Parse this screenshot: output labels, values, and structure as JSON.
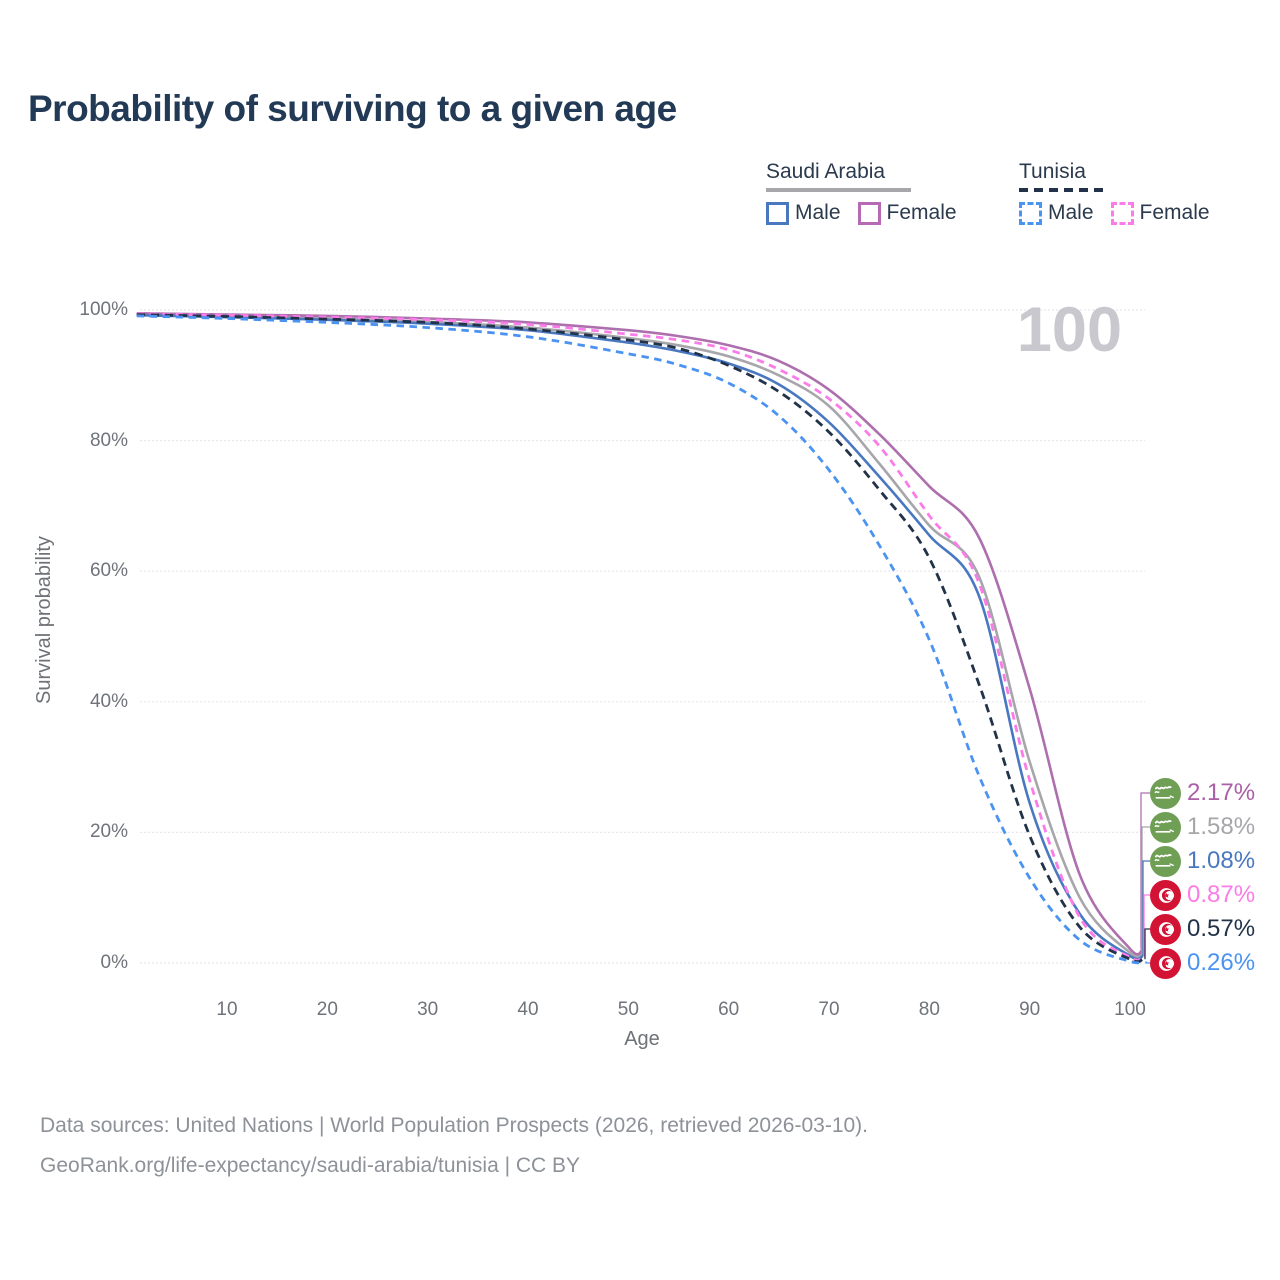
{
  "title": "Probability of surviving to a given age",
  "watermark": "100",
  "legend": {
    "groups": [
      {
        "name": "Saudi Arabia",
        "line_style": "solid",
        "underline_color": "#a6a6ab",
        "items": [
          {
            "label": "Male",
            "color": "#4978c0"
          },
          {
            "label": "Female",
            "color": "#b66ab4"
          }
        ]
      },
      {
        "name": "Tunisia",
        "line_style": "dashed",
        "underline_color": "#223349",
        "items": [
          {
            "label": "Male",
            "color": "#4b93f1"
          },
          {
            "label": "Female",
            "color": "#fb7ce8"
          }
        ]
      }
    ]
  },
  "chart_data": {
    "type": "line",
    "title": "Probability of surviving to a given age",
    "xlabel": "Age",
    "ylabel": "Survival probability",
    "xlim": [
      1,
      101.5
    ],
    "ylim": [
      0,
      100
    ],
    "x_ticks": [
      10,
      20,
      30,
      40,
      50,
      60,
      70,
      80,
      90,
      100
    ],
    "y_ticks": [
      0,
      20,
      40,
      60,
      80,
      100
    ],
    "y_tick_suffix": "%",
    "grid": "horizontal",
    "legend_position": "top-right",
    "ages": [
      1,
      10,
      20,
      30,
      40,
      50,
      55,
      60,
      65,
      70,
      75,
      80,
      85,
      90,
      95,
      100
    ],
    "series": [
      {
        "name": "Saudi Arabia Total",
        "color": "#a6a6ab",
        "dashed": false,
        "values": [
          99.3,
          99.1,
          98.7,
          98.2,
          97.3,
          95.7,
          94.6,
          92.9,
          90.0,
          85.3,
          76.5,
          67.0,
          59.0,
          30.8,
          10.0,
          1.58
        ],
        "end_label": "1.58%"
      },
      {
        "name": "Saudi Arabia Female",
        "color": "#ad6fad",
        "dashed": false,
        "values": [
          99.5,
          99.3,
          99.1,
          98.7,
          98.1,
          96.9,
          96.0,
          94.6,
          92.2,
          87.8,
          81.0,
          73.0,
          65.0,
          42.0,
          13.5,
          2.17
        ],
        "end_label": "2.17%"
      },
      {
        "name": "Saudi Arabia Male",
        "color": "#4978c0",
        "dashed": false,
        "values": [
          99.2,
          98.9,
          98.5,
          97.9,
          96.9,
          95.0,
          93.7,
          91.8,
          88.6,
          82.8,
          74.5,
          65.5,
          56.0,
          24.5,
          7.5,
          1.08
        ],
        "end_label": "1.08%"
      },
      {
        "name": "Tunisia Female",
        "color": "#fb7ce8",
        "dashed": true,
        "values": [
          99.4,
          99.2,
          98.9,
          98.5,
          97.8,
          96.3,
          95.4,
          93.9,
          90.9,
          86.4,
          79.2,
          68.5,
          58.0,
          28.0,
          7.0,
          0.87
        ],
        "end_label": "0.87%"
      },
      {
        "name": "Tunisia Total",
        "color": "#223349",
        "dashed": true,
        "values": [
          99.3,
          99.0,
          98.6,
          98.1,
          97.1,
          95.4,
          94.1,
          91.5,
          87.5,
          81.3,
          72.5,
          62.0,
          42.5,
          19.5,
          5.5,
          0.57
        ],
        "end_label": "0.57%"
      },
      {
        "name": "Tunisia Male",
        "color": "#4b93f1",
        "dashed": true,
        "values": [
          99.1,
          98.7,
          98.1,
          97.3,
          95.9,
          93.3,
          91.6,
          88.8,
          83.8,
          75.5,
          64.0,
          49.5,
          28.5,
          13.0,
          3.5,
          0.26
        ],
        "end_label": "0.26%"
      }
    ],
    "end_labels": [
      {
        "value": "2.17%",
        "flag": "saudi-arabia",
        "color": "#ab5fa5",
        "series": "Saudi Arabia Female"
      },
      {
        "value": "1.58%",
        "flag": "saudi-arabia",
        "color": "#a6a6ab",
        "series": "Saudi Arabia Total"
      },
      {
        "value": "1.08%",
        "flag": "saudi-arabia",
        "color": "#4978c0",
        "series": "Saudi Arabia Male"
      },
      {
        "value": "0.87%",
        "flag": "tunisia",
        "color": "#fb7ce8",
        "series": "Tunisia Female"
      },
      {
        "value": "0.57%",
        "flag": "tunisia",
        "color": "#223349",
        "series": "Tunisia Total"
      },
      {
        "value": "0.26%",
        "flag": "tunisia",
        "color": "#4b93f1",
        "series": "Tunisia Male"
      }
    ],
    "flag_colors": {
      "saudi_green": "#6f9e55",
      "tunisia_red": "#d21334"
    }
  },
  "footer": {
    "line1": "Data sources: United Nations | World Population Prospects (2026, retrieved 2026-03-10).",
    "line2": "GeoRank.org/life-expectancy/saudi-arabia/tunisia | CC BY"
  }
}
